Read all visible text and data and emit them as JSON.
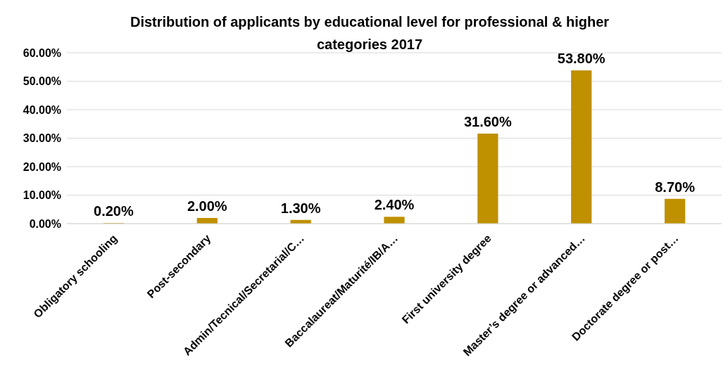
{
  "chart_data": {
    "type": "bar",
    "title": "Distribution of applicants by educational level for professional & higher categories  2017",
    "categories": [
      "Obligatory schooling",
      "Post-secondary",
      "Admin/Tecnical/Secretarial/C…",
      "Baccalaureat/Maturité/IB/A…",
      "First university degree",
      "Master’s degree or advanced…",
      "Doctorate degree or post…"
    ],
    "values": [
      0.2,
      2.0,
      1.3,
      2.4,
      31.6,
      53.8,
      8.7
    ],
    "value_labels": [
      "0.20%",
      "2.00%",
      "1.30%",
      "2.40%",
      "31.60%",
      "53.80%",
      "8.70%"
    ],
    "color": "#bf9000",
    "ylim": [
      0,
      60
    ],
    "yticks": [
      {
        "value": 0,
        "label": "0.00%"
      },
      {
        "value": 10,
        "label": "10.00%"
      },
      {
        "value": 20,
        "label": "20.00%"
      },
      {
        "value": 30,
        "label": "30.00%"
      },
      {
        "value": 40,
        "label": "40.00%"
      },
      {
        "value": 50,
        "label": "50.00%"
      },
      {
        "value": 60,
        "label": "60.00%"
      }
    ],
    "grid": "y"
  }
}
